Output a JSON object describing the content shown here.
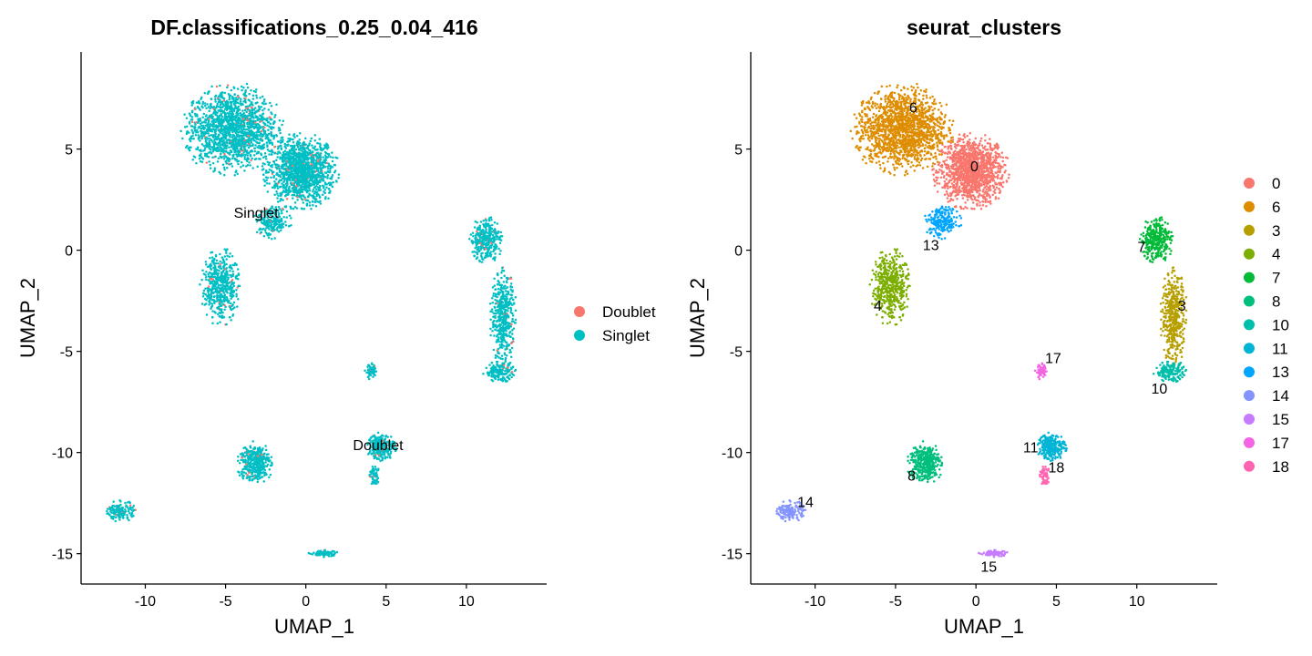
{
  "chart_data": [
    {
      "type": "scatter",
      "title": "DF.classifications_0.25_0.04_416",
      "xlabel": "UMAP_1",
      "ylabel": "UMAP_2",
      "xlim": [
        -14,
        15
      ],
      "ylim": [
        -16.5,
        9.8
      ],
      "xticks": [
        -10,
        -5,
        0,
        5,
        10
      ],
      "xtick_labels": [
        "-10",
        "-5",
        "0",
        "5",
        "10"
      ],
      "yticks": [
        -15,
        -10,
        -5,
        0,
        5
      ],
      "ytick_labels": [
        "-15",
        "-10",
        "-5",
        "0",
        "5"
      ],
      "grid": false,
      "legend_position": "right",
      "legend": [
        {
          "name": "Doublet",
          "color": "#F8766D"
        },
        {
          "name": "Singlet",
          "color": "#00BFC4"
        }
      ],
      "labels": [
        {
          "text": "Singlet",
          "x": -3.1,
          "y": 1.8
        },
        {
          "text": "Doublet",
          "x": 4.5,
          "y": -9.7
        }
      ]
    },
    {
      "type": "scatter",
      "title": "seurat_clusters",
      "xlabel": "UMAP_1",
      "ylabel": "UMAP_2",
      "xlim": [
        -14,
        15
      ],
      "ylim": [
        -16.5,
        9.8
      ],
      "xticks": [
        -10,
        -5,
        0,
        5,
        10
      ],
      "xtick_labels": [
        "-10",
        "-5",
        "0",
        "5",
        "10"
      ],
      "yticks": [
        -15,
        -10,
        -5,
        0,
        5
      ],
      "ytick_labels": [
        "-15",
        "-10",
        "-5",
        "0",
        "5"
      ],
      "grid": false,
      "legend_position": "right",
      "legend": [
        {
          "name": "0",
          "color": "#F8766D"
        },
        {
          "name": "6",
          "color": "#DE8C00"
        },
        {
          "name": "3",
          "color": "#B79F00"
        },
        {
          "name": "4",
          "color": "#7CAE00"
        },
        {
          "name": "7",
          "color": "#00BA38"
        },
        {
          "name": "8",
          "color": "#00BF7D"
        },
        {
          "name": "10",
          "color": "#00BFAA"
        },
        {
          "name": "11",
          "color": "#00B4D5"
        },
        {
          "name": "13",
          "color": "#00A5FF"
        },
        {
          "name": "14",
          "color": "#8494FF"
        },
        {
          "name": "15",
          "color": "#C77CFF"
        },
        {
          "name": "17",
          "color": "#F564E3"
        },
        {
          "name": "18",
          "color": "#FF64B0"
        }
      ],
      "labels": [
        {
          "text": "6",
          "x": -3.9,
          "y": 7.0
        },
        {
          "text": "0",
          "x": -0.1,
          "y": 4.1
        },
        {
          "text": "13",
          "x": -2.8,
          "y": 0.2
        },
        {
          "text": "4",
          "x": -6.1,
          "y": -2.8
        },
        {
          "text": "7",
          "x": 10.3,
          "y": 0.1
        },
        {
          "text": "3",
          "x": 12.8,
          "y": -2.8
        },
        {
          "text": "17",
          "x": 4.8,
          "y": -5.4
        },
        {
          "text": "10",
          "x": 11.4,
          "y": -6.9
        },
        {
          "text": "11",
          "x": 3.4,
          "y": -9.8
        },
        {
          "text": "18",
          "x": 5.0,
          "y": -10.8
        },
        {
          "text": "8",
          "x": -4.0,
          "y": -11.2
        },
        {
          "text": "14",
          "x": -10.6,
          "y": -12.5
        },
        {
          "text": "15",
          "x": 0.8,
          "y": -15.7
        }
      ],
      "clusters": [
        {
          "label": "0",
          "color": "#F8766D",
          "cx": -0.3,
          "cy": 3.9,
          "rx": 2.0,
          "ry": 1.6,
          "n": 1300
        },
        {
          "label": "6",
          "color": "#DE8C00",
          "cx": -4.6,
          "cy": 6.0,
          "rx": 2.7,
          "ry": 1.9,
          "n": 1500
        },
        {
          "label": "13",
          "color": "#00A5FF",
          "cx": -2.1,
          "cy": 1.4,
          "rx": 1.0,
          "ry": 0.7,
          "n": 220
        },
        {
          "label": "4",
          "color": "#7CAE00",
          "cx": -5.3,
          "cy": -1.8,
          "rx": 1.1,
          "ry": 1.6,
          "n": 480
        },
        {
          "label": "7",
          "color": "#00BA38",
          "cx": 11.2,
          "cy": 0.5,
          "rx": 0.9,
          "ry": 1.0,
          "n": 330
        },
        {
          "label": "3",
          "color": "#B79F00",
          "cx": 12.3,
          "cy": -3.3,
          "rx": 0.7,
          "ry": 2.1,
          "n": 460
        },
        {
          "label": "10",
          "color": "#00BFAA",
          "cx": 12.1,
          "cy": -6.0,
          "rx": 0.9,
          "ry": 0.45,
          "n": 170
        },
        {
          "label": "17",
          "color": "#F564E3",
          "cx": 4.1,
          "cy": -6.0,
          "rx": 0.35,
          "ry": 0.35,
          "n": 60
        },
        {
          "label": "11",
          "color": "#00B4D5",
          "cx": 4.7,
          "cy": -9.7,
          "rx": 0.8,
          "ry": 0.6,
          "n": 260
        },
        {
          "label": "18",
          "color": "#FF64B0",
          "cx": 4.3,
          "cy": -11.2,
          "rx": 0.3,
          "ry": 0.45,
          "n": 60
        },
        {
          "label": "8",
          "color": "#00BF7D",
          "cx": -3.2,
          "cy": -10.5,
          "rx": 1.0,
          "ry": 0.9,
          "n": 360
        },
        {
          "label": "14",
          "color": "#8494FF",
          "cx": -11.5,
          "cy": -12.9,
          "rx": 0.8,
          "ry": 0.45,
          "n": 150
        },
        {
          "label": "15",
          "color": "#C77CFF",
          "cx": 1.1,
          "cy": -15.0,
          "rx": 0.8,
          "ry": 0.15,
          "n": 90
        }
      ]
    }
  ]
}
